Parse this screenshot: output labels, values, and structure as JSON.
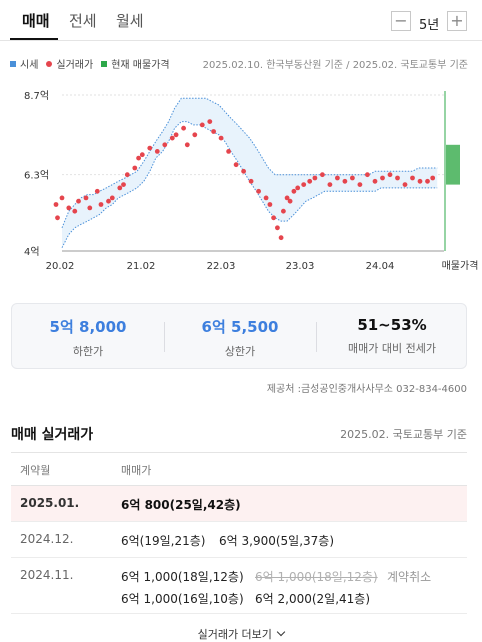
{
  "tabs": [
    {
      "label": "매매"
    },
    {
      "label": "전세"
    },
    {
      "label": "월세"
    }
  ],
  "period": {
    "minus": "−",
    "value": "5년",
    "plus": "+"
  },
  "legend": {
    "items": [
      {
        "label": "시세",
        "color": "#4a90d9"
      },
      {
        "label": "실거래가",
        "color": "#e5454d"
      },
      {
        "label": "현재 매물가격",
        "color": "#2da84a"
      }
    ],
    "source": "2025.02.10. 한국부동산원 기준 / 2025.02. 국토교통부 기준"
  },
  "chart_data": {
    "type": "scatter",
    "y_ticks": [
      "8.7억",
      "6.3억",
      "4억"
    ],
    "x_ticks": [
      "20.02",
      "21.02",
      "22.03",
      "23.03",
      "24.04",
      "매물가격"
    ],
    "ylim": [
      4.0,
      8.7
    ],
    "x_range": [
      2020.08,
      2025.17
    ],
    "series": [
      {
        "name": "시세",
        "x": [
          2020.08,
          2020.17,
          2020.25,
          2020.33,
          2020.42,
          2020.5,
          2020.58,
          2020.67,
          2020.75,
          2020.83,
          2020.92,
          2021.0,
          2021.08,
          2021.17,
          2021.25,
          2021.33,
          2021.42,
          2021.5,
          2021.58,
          2021.67,
          2021.75,
          2021.83,
          2021.92,
          2022.0,
          2022.08,
          2022.17,
          2022.25,
          2022.33,
          2022.42,
          2022.5,
          2022.58,
          2022.67,
          2022.75,
          2022.83,
          2022.92,
          2023.0,
          2023.08,
          2023.17,
          2023.25,
          2023.33,
          2023.42,
          2023.5,
          2023.58,
          2023.67,
          2023.75,
          2023.83,
          2023.92,
          2024.0,
          2024.08,
          2024.17,
          2024.25,
          2024.33,
          2024.42,
          2024.5,
          2024.58,
          2024.67,
          2024.75,
          2024.83,
          2024.92,
          2025.0,
          2025.08
        ],
        "upper": [
          4.7,
          5.2,
          5.4,
          5.6,
          5.7,
          5.7,
          5.8,
          5.9,
          6.0,
          6.1,
          6.2,
          6.3,
          6.4,
          6.7,
          7.0,
          7.3,
          7.6,
          7.9,
          8.3,
          8.6,
          8.6,
          8.6,
          8.6,
          8.6,
          8.5,
          8.4,
          8.2,
          8.0,
          7.8,
          7.6,
          7.4,
          7.1,
          6.8,
          6.5,
          6.3,
          6.3,
          6.3,
          6.3,
          6.3,
          6.3,
          6.3,
          6.3,
          6.3,
          6.3,
          6.3,
          6.3,
          6.3,
          6.3,
          6.3,
          6.3,
          6.4,
          6.4,
          6.4,
          6.4,
          6.4,
          6.4,
          6.4,
          6.5,
          6.5,
          6.5,
          6.5
        ],
        "lower": [
          4.1,
          4.5,
          4.7,
          4.8,
          4.9,
          5.0,
          5.1,
          5.3,
          5.4,
          5.6,
          5.7,
          5.8,
          5.9,
          6.1,
          6.4,
          6.8,
          7.0,
          7.3,
          7.7,
          7.9,
          7.9,
          7.8,
          7.8,
          7.7,
          7.6,
          7.5,
          7.3,
          7.0,
          6.7,
          6.4,
          6.1,
          5.8,
          5.5,
          5.2,
          5.0,
          4.9,
          4.9,
          5.1,
          5.3,
          5.5,
          5.6,
          5.7,
          5.8,
          5.8,
          5.8,
          5.8,
          5.8,
          5.8,
          5.8,
          5.8,
          5.8,
          5.9,
          5.9,
          5.9,
          5.9,
          5.9,
          5.9,
          5.9,
          5.9,
          5.9,
          5.9
        ]
      },
      {
        "name": "실거래가",
        "x": [
          2020.0,
          2020.02,
          2020.08,
          2020.17,
          2020.25,
          2020.3,
          2020.4,
          2020.45,
          2020.55,
          2020.6,
          2020.7,
          2020.75,
          2020.85,
          2020.9,
          2020.95,
          2021.05,
          2021.1,
          2021.15,
          2021.25,
          2021.35,
          2021.45,
          2021.55,
          2021.6,
          2021.7,
          2021.75,
          2021.85,
          2021.95,
          2022.05,
          2022.1,
          2022.2,
          2022.3,
          2022.4,
          2022.5,
          2022.6,
          2022.7,
          2022.8,
          2022.85,
          2022.9,
          2022.95,
          2023.0,
          2023.03,
          2023.08,
          2023.12,
          2023.17,
          2023.22,
          2023.3,
          2023.38,
          2023.45,
          2023.55,
          2023.65,
          2023.75,
          2023.85,
          2023.95,
          2024.05,
          2024.15,
          2024.25,
          2024.35,
          2024.45,
          2024.55,
          2024.65,
          2024.75,
          2024.85,
          2024.95,
          2025.02
        ],
        "y": [
          5.4,
          5.0,
          5.6,
          5.3,
          5.2,
          5.5,
          5.6,
          5.3,
          5.8,
          5.4,
          5.5,
          5.6,
          5.9,
          6.0,
          6.3,
          6.5,
          6.8,
          6.9,
          7.1,
          7.0,
          7.2,
          7.4,
          7.5,
          7.7,
          7.2,
          7.5,
          7.8,
          7.9,
          7.6,
          7.4,
          7.0,
          6.6,
          6.4,
          6.1,
          5.8,
          5.6,
          5.4,
          5.0,
          4.7,
          4.4,
          5.2,
          5.6,
          5.5,
          5.8,
          5.9,
          6.0,
          6.1,
          6.2,
          6.3,
          6.0,
          6.2,
          6.1,
          6.2,
          6.0,
          6.3,
          6.1,
          6.2,
          6.3,
          6.2,
          6.0,
          6.2,
          6.1,
          6.1,
          6.2
        ]
      },
      {
        "name": "현재 매물가격",
        "y_min": 6.0,
        "y_max": 7.2
      }
    ]
  },
  "summary": {
    "low": {
      "value": "5억 8,000",
      "label": "하한가"
    },
    "high": {
      "value": "6억 5,500",
      "label": "상한가"
    },
    "ratio": {
      "value": "51~53%",
      "label": "매매가 대비 전세가"
    }
  },
  "provider": "제공처 :금성공인중개사사무소 032-834-4600",
  "transactions": {
    "title": "매매 실거래가",
    "meta": "2025.02. 국토교통부 기준",
    "header": {
      "date": "계약월",
      "price": "매매가"
    },
    "rows": [
      {
        "date": "2025.01.",
        "lines": [
          [
            "6억 800(25일,42층)"
          ]
        ]
      },
      {
        "date": "2024.12.",
        "lines": [
          [
            "6억(19일,21층)",
            "6억 3,900(5일,37층)"
          ]
        ]
      },
      {
        "date": "2024.11.",
        "lines": [
          [
            "6억 1,000(18일,12층)",
            "6억 1,000(18일,12층)"
          ],
          [
            "6억 1,000(16일,10층)",
            "6억 2,000(2일,41층)"
          ]
        ],
        "cancel_note": "계약취소"
      }
    ],
    "more": "실거래가 더보기"
  }
}
